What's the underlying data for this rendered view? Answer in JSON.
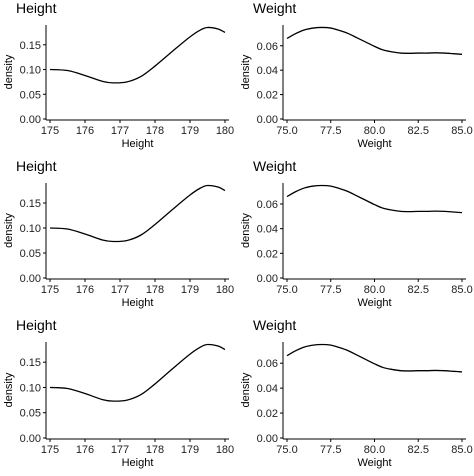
{
  "chart_data": [
    {
      "type": "line",
      "title": "Height",
      "xlabel": "Height",
      "ylabel": "density",
      "xlim": [
        175,
        180
      ],
      "ylim": [
        0,
        0.19
      ],
      "xticks": [
        175,
        176,
        177,
        178,
        179,
        180
      ],
      "xtick_labels": [
        "175",
        "176",
        "177",
        "178",
        "179",
        "180"
      ],
      "yticks": [
        0,
        0.05,
        0.1,
        0.15
      ],
      "ytick_labels": [
        "0.00",
        "0.05",
        "0.10",
        "0.15"
      ],
      "series": [
        {
          "x": [
            175.0,
            175.5,
            176.0,
            176.5,
            176.8,
            177.2,
            177.6,
            178.0,
            178.5,
            179.0,
            179.3,
            179.5,
            179.8,
            180.0
          ],
          "values": [
            0.1,
            0.098,
            0.088,
            0.076,
            0.073,
            0.075,
            0.086,
            0.107,
            0.137,
            0.166,
            0.18,
            0.185,
            0.182,
            0.175
          ]
        }
      ]
    },
    {
      "type": "line",
      "title": "Weight",
      "xlabel": "Weight",
      "ylabel": "density",
      "xlim": [
        75,
        85
      ],
      "ylim": [
        0,
        0.077
      ],
      "xticks": [
        75,
        77.5,
        80,
        82.5,
        85
      ],
      "xtick_labels": [
        "75.0",
        "77.5",
        "80.0",
        "82.5",
        "85.0"
      ],
      "yticks": [
        0,
        0.02,
        0.04,
        0.06
      ],
      "ytick_labels": [
        "0.00",
        "0.02",
        "0.04",
        "0.06"
      ],
      "series": [
        {
          "x": [
            75.0,
            75.5,
            76.0,
            76.5,
            77.0,
            77.5,
            78.0,
            78.5,
            79.0,
            79.5,
            80.0,
            80.5,
            81.0,
            81.5,
            82.0,
            82.5,
            83.0,
            83.5,
            84.0,
            84.5,
            85.0
          ],
          "values": [
            0.066,
            0.07,
            0.073,
            0.0745,
            0.075,
            0.0745,
            0.0725,
            0.07,
            0.0665,
            0.063,
            0.0595,
            0.0565,
            0.055,
            0.054,
            0.0538,
            0.054,
            0.054,
            0.0542,
            0.054,
            0.0535,
            0.053
          ]
        }
      ]
    },
    {
      "type": "line",
      "title": "Height",
      "xlabel": "Height",
      "ylabel": "density",
      "xlim": [
        175,
        180
      ],
      "ylim": [
        0,
        0.19
      ],
      "xticks": [
        175,
        176,
        177,
        178,
        179,
        180
      ],
      "xtick_labels": [
        "175",
        "176",
        "177",
        "178",
        "179",
        "180"
      ],
      "yticks": [
        0,
        0.05,
        0.1,
        0.15
      ],
      "ytick_labels": [
        "0.00",
        "0.05",
        "0.10",
        "0.15"
      ],
      "series": [
        {
          "x": [
            175.0,
            175.5,
            176.0,
            176.5,
            176.8,
            177.2,
            177.6,
            178.0,
            178.5,
            179.0,
            179.3,
            179.5,
            179.8,
            180.0
          ],
          "values": [
            0.1,
            0.098,
            0.088,
            0.076,
            0.073,
            0.075,
            0.086,
            0.107,
            0.137,
            0.166,
            0.18,
            0.185,
            0.182,
            0.175
          ]
        }
      ]
    },
    {
      "type": "line",
      "title": "Weight",
      "xlabel": "Weight",
      "ylabel": "density",
      "xlim": [
        75,
        85
      ],
      "ylim": [
        0,
        0.077
      ],
      "xticks": [
        75,
        77.5,
        80,
        82.5,
        85
      ],
      "xtick_labels": [
        "75.0",
        "77.5",
        "80.0",
        "82.5",
        "85.0"
      ],
      "yticks": [
        0,
        0.02,
        0.04,
        0.06
      ],
      "ytick_labels": [
        "0.00",
        "0.02",
        "0.04",
        "0.06"
      ],
      "series": [
        {
          "x": [
            75.0,
            75.5,
            76.0,
            76.5,
            77.0,
            77.5,
            78.0,
            78.5,
            79.0,
            79.5,
            80.0,
            80.5,
            81.0,
            81.5,
            82.0,
            82.5,
            83.0,
            83.5,
            84.0,
            84.5,
            85.0
          ],
          "values": [
            0.066,
            0.07,
            0.073,
            0.0745,
            0.075,
            0.0745,
            0.0725,
            0.07,
            0.0665,
            0.063,
            0.0595,
            0.0565,
            0.055,
            0.054,
            0.0538,
            0.054,
            0.054,
            0.0542,
            0.054,
            0.0535,
            0.053
          ]
        }
      ]
    },
    {
      "type": "line",
      "title": "Height",
      "xlabel": "Height",
      "ylabel": "density",
      "xlim": [
        175,
        180
      ],
      "ylim": [
        0,
        0.19
      ],
      "xticks": [
        175,
        176,
        177,
        178,
        179,
        180
      ],
      "xtick_labels": [
        "175",
        "176",
        "177",
        "178",
        "179",
        "180"
      ],
      "yticks": [
        0,
        0.05,
        0.1,
        0.15
      ],
      "ytick_labels": [
        "0.00",
        "0.05",
        "0.10",
        "0.15"
      ],
      "series": [
        {
          "x": [
            175.0,
            175.5,
            176.0,
            176.5,
            176.8,
            177.2,
            177.6,
            178.0,
            178.5,
            179.0,
            179.3,
            179.5,
            179.8,
            180.0
          ],
          "values": [
            0.1,
            0.098,
            0.088,
            0.076,
            0.073,
            0.075,
            0.086,
            0.107,
            0.137,
            0.166,
            0.18,
            0.185,
            0.182,
            0.175
          ]
        }
      ]
    },
    {
      "type": "line",
      "title": "Weight",
      "xlabel": "Weight",
      "ylabel": "density",
      "xlim": [
        75,
        85
      ],
      "ylim": [
        0,
        0.077
      ],
      "xticks": [
        75,
        77.5,
        80,
        82.5,
        85
      ],
      "xtick_labels": [
        "75.0",
        "77.5",
        "80.0",
        "82.5",
        "85.0"
      ],
      "yticks": [
        0,
        0.02,
        0.04,
        0.06
      ],
      "ytick_labels": [
        "0.00",
        "0.02",
        "0.04",
        "0.06"
      ],
      "series": [
        {
          "x": [
            75.0,
            75.5,
            76.0,
            76.5,
            77.0,
            77.5,
            78.0,
            78.5,
            79.0,
            79.5,
            80.0,
            80.5,
            81.0,
            81.5,
            82.0,
            82.5,
            83.0,
            83.5,
            84.0,
            84.5,
            85.0
          ],
          "values": [
            0.066,
            0.07,
            0.073,
            0.0745,
            0.075,
            0.0745,
            0.0725,
            0.07,
            0.0665,
            0.063,
            0.0595,
            0.0565,
            0.055,
            0.054,
            0.0538,
            0.054,
            0.054,
            0.0542,
            0.054,
            0.0535,
            0.053
          ]
        }
      ]
    }
  ]
}
